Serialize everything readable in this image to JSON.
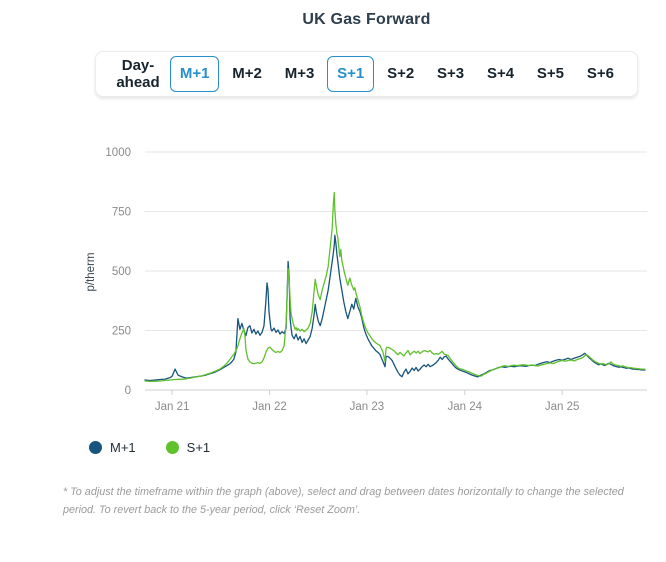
{
  "title": "UK Gas Forward",
  "colors": {
    "accent_blue": "#2590c9",
    "series_m1": "#17557d",
    "series_s1": "#5fc12c",
    "gridline": "#e6e6e6",
    "axis": "#cfcfcf",
    "tick_label": "#8a8a8a"
  },
  "tabs": {
    "items": [
      {
        "label": "Day-ahead",
        "selected": false
      },
      {
        "label": "M+1",
        "selected": true
      },
      {
        "label": "M+2",
        "selected": false
      },
      {
        "label": "M+3",
        "selected": false
      },
      {
        "label": "S+1",
        "selected": true
      },
      {
        "label": "S+2",
        "selected": false
      },
      {
        "label": "S+3",
        "selected": false
      },
      {
        "label": "S+4",
        "selected": false
      },
      {
        "label": "S+5",
        "selected": false
      },
      {
        "label": "S+6",
        "selected": false
      }
    ]
  },
  "legend": {
    "items": [
      {
        "label": "M+1",
        "color": "#17557d"
      },
      {
        "label": "S+1",
        "color": "#5fc12c"
      }
    ]
  },
  "footnote": "* To adjust the timeframe within the graph (above), select and drag between dates horizontally to change the selected period. To revert back to the 5-year period, click ‘Reset Zoom’.",
  "chart_data": {
    "type": "line",
    "title": "UK Gas Forward",
    "ylabel": "p/therm",
    "ylim": [
      0,
      1000
    ],
    "y_ticks": [
      0,
      250,
      500,
      750,
      1000
    ],
    "x_ticks": [
      {
        "pos": 0.054,
        "label": "Jan 21"
      },
      {
        "pos": 0.248,
        "label": "Jan 22"
      },
      {
        "pos": 0.442,
        "label": "Jan 23"
      },
      {
        "pos": 0.637,
        "label": "Jan 24"
      },
      {
        "pos": 0.831,
        "label": "Jan 25"
      }
    ],
    "grid": true,
    "legend_position": "bottom-left",
    "x": [
      0.0,
      0.01,
      0.02,
      0.03,
      0.04,
      0.05,
      0.054,
      0.06,
      0.066,
      0.074,
      0.082,
      0.09,
      0.1,
      0.11,
      0.12,
      0.129,
      0.139,
      0.149,
      0.157,
      0.163,
      0.169,
      0.173,
      0.177,
      0.181,
      0.185,
      0.189,
      0.193,
      0.197,
      0.199,
      0.201,
      0.205,
      0.209,
      0.213,
      0.217,
      0.221,
      0.225,
      0.229,
      0.233,
      0.237,
      0.241,
      0.243,
      0.245,
      0.247,
      0.249,
      0.251,
      0.253,
      0.257,
      0.261,
      0.265,
      0.269,
      0.273,
      0.277,
      0.281,
      0.285,
      0.287,
      0.289,
      0.291,
      0.293,
      0.295,
      0.297,
      0.299,
      0.301,
      0.303,
      0.305,
      0.309,
      0.313,
      0.317,
      0.321,
      0.325,
      0.329,
      0.333,
      0.337,
      0.339,
      0.341,
      0.345,
      0.349,
      0.353,
      0.357,
      0.361,
      0.365,
      0.369,
      0.373,
      0.375,
      0.377,
      0.378,
      0.38,
      0.382,
      0.384,
      0.386,
      0.388,
      0.39,
      0.392,
      0.396,
      0.4,
      0.404,
      0.408,
      0.412,
      0.416,
      0.418,
      0.42,
      0.424,
      0.428,
      0.432,
      0.436,
      0.44,
      0.444,
      0.448,
      0.452,
      0.456,
      0.46,
      0.464,
      0.468,
      0.474,
      0.478,
      0.48,
      0.482,
      0.486,
      0.492,
      0.496,
      0.5,
      0.504,
      0.508,
      0.512,
      0.516,
      0.52,
      0.524,
      0.528,
      0.532,
      0.536,
      0.54,
      0.544,
      0.548,
      0.552,
      0.556,
      0.56,
      0.564,
      0.568,
      0.572,
      0.576,
      0.58,
      0.584,
      0.588,
      0.592,
      0.596,
      0.6,
      0.604,
      0.608,
      0.612,
      0.616,
      0.62,
      0.624,
      0.627,
      0.633,
      0.639,
      0.645,
      0.651,
      0.657,
      0.663,
      0.669,
      0.675,
      0.681,
      0.687,
      0.693,
      0.699,
      0.705,
      0.711,
      0.717,
      0.723,
      0.729,
      0.735,
      0.741,
      0.747,
      0.753,
      0.759,
      0.765,
      0.771,
      0.777,
      0.783,
      0.789,
      0.795,
      0.801,
      0.807,
      0.813,
      0.819,
      0.825,
      0.831,
      0.837,
      0.843,
      0.849,
      0.855,
      0.861,
      0.867,
      0.872,
      0.876,
      0.88,
      0.884,
      0.888,
      0.892,
      0.896,
      0.9,
      0.904,
      0.908,
      0.912,
      0.916,
      0.92,
      0.924,
      0.928,
      0.932,
      0.936,
      0.94,
      0.944,
      0.948,
      0.952,
      0.956,
      0.96,
      0.964,
      0.968,
      0.972,
      0.976,
      0.98,
      0.984,
      0.988,
      0.992,
      0.996
    ],
    "series": [
      {
        "name": "M+1",
        "color": "#17557d",
        "values": [
          42,
          40,
          42,
          44,
          46,
          52,
          58,
          88,
          62,
          55,
          50,
          52,
          55,
          58,
          62,
          68,
          75,
          85,
          95,
          102,
          110,
          118,
          130,
          160,
          300,
          255,
          280,
          250,
          240,
          228,
          262,
          270,
          240,
          255,
          235,
          248,
          230,
          242,
          270,
          380,
          450,
          420,
          330,
          290,
          255,
          248,
          260,
          242,
          252,
          235,
          245,
          238,
          260,
          540,
          480,
          300,
          260,
          230,
          222,
          215,
          225,
          235,
          222,
          210,
          225,
          200,
          215,
          195,
          210,
          225,
          260,
          320,
          360,
          330,
          290,
          270,
          300,
          340,
          380,
          420,
          480,
          540,
          575,
          610,
          650,
          620,
          575,
          540,
          505,
          470,
          445,
          420,
          370,
          330,
          300,
          330,
          360,
          340,
          365,
          385,
          350,
          330,
          300,
          260,
          235,
          215,
          200,
          185,
          175,
          165,
          158,
          150,
          120,
          98,
          138,
          142,
          138,
          125,
          108,
          90,
          75,
          62,
          56,
          75,
          88,
          68,
          78,
          92,
          82,
          95,
          80,
          88,
          98,
          105,
          98,
          108,
          98,
          102,
          108,
          115,
          125,
          138,
          128,
          140,
          142,
          130,
          120,
          110,
          100,
          92,
          87,
          84,
          79,
          75,
          69,
          63,
          59,
          55,
          62,
          68,
          75,
          82,
          85,
          90,
          95,
          98,
          95,
          98,
          100,
          98,
          100,
          102,
          101,
          99,
          103,
          104,
          103,
          108,
          112,
          116,
          119,
          115,
          121,
          125,
          128,
          125,
          129,
          133,
          128,
          134,
          138,
          142,
          148,
          154,
          146,
          137,
          129,
          122,
          115,
          110,
          106,
          110,
          106,
          103,
          108,
          112,
          108,
          103,
          100,
          98,
          96,
          98,
          95,
          93,
          91,
          93,
          90,
          88,
          88,
          86,
          86,
          85,
          84,
          84
        ]
      },
      {
        "name": "S+1",
        "color": "#5fc12c",
        "values": [
          38,
          36,
          36,
          38,
          40,
          42,
          43,
          44,
          45,
          45,
          47,
          50,
          54,
          58,
          64,
          70,
          78,
          88,
          100,
          112,
          128,
          140,
          150,
          165,
          185,
          215,
          240,
          258,
          230,
          170,
          130,
          118,
          112,
          110,
          112,
          115,
          112,
          118,
          135,
          160,
          168,
          175,
          178,
          180,
          175,
          170,
          162,
          158,
          162,
          158,
          165,
          185,
          280,
          510,
          470,
          380,
          320,
          300,
          280,
          268,
          255,
          262,
          250,
          258,
          248,
          255,
          245,
          252,
          260,
          280,
          330,
          420,
          465,
          440,
          400,
          380,
          420,
          450,
          480,
          520,
          600,
          680,
          780,
          830,
          760,
          700,
          660,
          640,
          600,
          560,
          590,
          545,
          505,
          470,
          440,
          470,
          440,
          420,
          430,
          410,
          380,
          350,
          310,
          280,
          258,
          240,
          228,
          215,
          205,
          198,
          192,
          188,
          160,
          120,
          172,
          180,
          178,
          170,
          165,
          156,
          148,
          158,
          150,
          143,
          156,
          166,
          148,
          156,
          163,
          156,
          163,
          153,
          160,
          166,
          163,
          160,
          166,
          156,
          150,
          153,
          150,
          156,
          162,
          150,
          148,
          145,
          132,
          121,
          111,
          101,
          93,
          89,
          86,
          81,
          77,
          71,
          65,
          61,
          58,
          66,
          72,
          79,
          86,
          89,
          94,
          99,
          102,
          99,
          102,
          104,
          102,
          104,
          106,
          105,
          103,
          105,
          102,
          101,
          105,
          108,
          111,
          114,
          111,
          116,
          120,
          124,
          121,
          124,
          126,
          122,
          128,
          132,
          136,
          144,
          148,
          141,
          134,
          126,
          120,
          116,
          112,
          108,
          111,
          108,
          106,
          110,
          118,
          110,
          106,
          104,
          102,
          100,
          101,
          98,
          96,
          94,
          94,
          92,
          91,
          90,
          89,
          88,
          88,
          87
        ]
      }
    ]
  }
}
